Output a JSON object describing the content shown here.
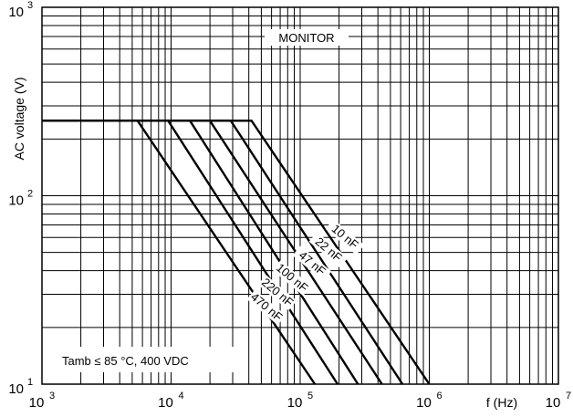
{
  "chart_data": {
    "type": "line",
    "xscale": "log",
    "yscale": "log",
    "xlim": [
      1000,
      10000000
    ],
    "ylim": [
      10,
      1000
    ],
    "xlabel": "f (Hz)",
    "ylabel": "AC voltage (V)",
    "grid": true,
    "xticks": [
      {
        "base": "10",
        "exp": "3"
      },
      {
        "base": "10",
        "exp": "4"
      },
      {
        "base": "10",
        "exp": "5"
      },
      {
        "base": "10",
        "exp": "6"
      },
      {
        "base": "10",
        "exp": "7"
      }
    ],
    "yticks": [
      {
        "base": "10",
        "exp": "1"
      },
      {
        "base": "10",
        "exp": "2"
      },
      {
        "base": "10",
        "exp": "3"
      }
    ],
    "annotations": {
      "monitor": "MONITOR",
      "conditions": "Tamb  ≤ 85 °C, 400 VDC"
    },
    "series": [
      {
        "name": "10 nF",
        "x": [
          1000,
          42000,
          1000000
        ],
        "y": [
          250,
          250,
          10
        ]
      },
      {
        "name": "22 nF",
        "x": [
          1000,
          29000,
          620000
        ],
        "y": [
          250,
          250,
          10
        ]
      },
      {
        "name": "47 nF",
        "x": [
          1000,
          20000,
          430000
        ],
        "y": [
          250,
          250,
          10
        ]
      },
      {
        "name": "100 nF",
        "x": [
          1000,
          14000,
          280000
        ],
        "y": [
          250,
          250,
          10
        ]
      },
      {
        "name": "220 nF",
        "x": [
          1000,
          9500,
          195000
        ],
        "y": [
          250,
          250,
          10
        ]
      },
      {
        "name": "470 nF",
        "x": [
          1000,
          5500,
          130000
        ],
        "y": [
          250,
          250,
          10
        ]
      }
    ]
  }
}
